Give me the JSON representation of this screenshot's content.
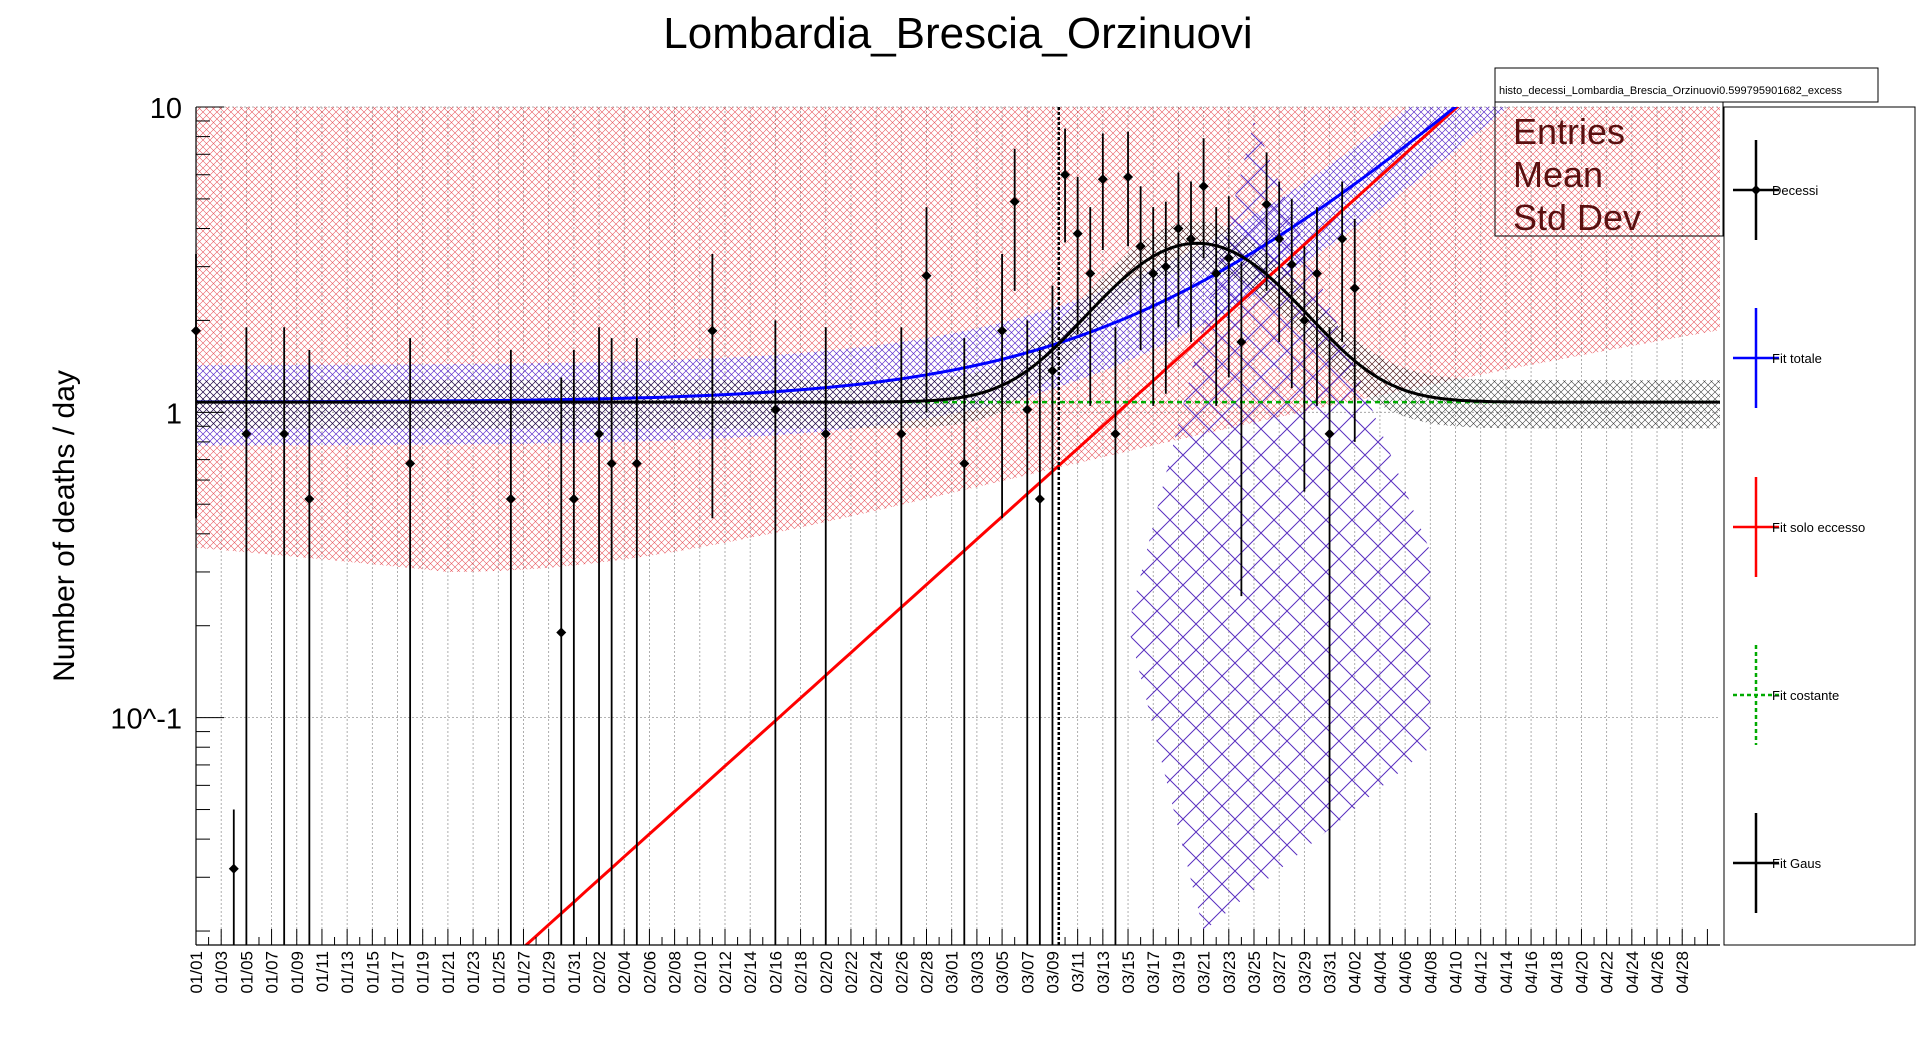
{
  "chart_data": {
    "type": "scatter",
    "title": "Lombardia_Brescia_Orzinuovi",
    "ylabel": "Number of deaths / day",
    "xlabel": "",
    "y_scale": "log",
    "ylim": [
      0.018,
      10
    ],
    "y_ticks": [
      "10",
      "1",
      "10^-1"
    ],
    "x_day_range": [
      0,
      121
    ],
    "x_tick_labels": [
      "01/01",
      "01/03",
      "01/05",
      "01/07",
      "01/09",
      "01/11",
      "01/13",
      "01/15",
      "01/17",
      "01/19",
      "01/21",
      "01/23",
      "01/25",
      "01/27",
      "01/29",
      "01/31",
      "02/02",
      "02/04",
      "02/06",
      "02/08",
      "02/10",
      "02/12",
      "02/14",
      "02/16",
      "02/18",
      "02/20",
      "02/22",
      "02/24",
      "02/26",
      "02/28",
      "03/01",
      "03/03",
      "03/05",
      "03/07",
      "03/09",
      "03/11",
      "03/13",
      "03/15",
      "03/17",
      "03/19",
      "03/21",
      "03/23",
      "03/25",
      "03/27",
      "03/29",
      "03/31",
      "04/02",
      "04/04",
      "04/06",
      "04/08",
      "04/10",
      "04/12",
      "04/14",
      "04/16",
      "04/18",
      "04/20",
      "04/22",
      "04/24",
      "04/26",
      "04/28"
    ],
    "grid": true,
    "legend_position": "right",
    "stats_box": {
      "name": "histo_decessi_Lombardia_Brescia_Orzinuovi0.599795901682_excess",
      "labels": [
        "Entries",
        "Mean",
        "Std Dev"
      ]
    },
    "vertical_marker_day": 68.5,
    "series": [
      {
        "name": "Decessi",
        "color": "#000000",
        "points": [
          {
            "day": 0,
            "y": 1.85,
            "lo": 0.45,
            "hi": 3.3
          },
          {
            "day": 3,
            "y": 0.032,
            "lo": 0.018,
            "hi": 0.05
          },
          {
            "day": 4,
            "y": 0.85,
            "lo": 0.018,
            "hi": 1.9
          },
          {
            "day": 7,
            "y": 0.85,
            "lo": 0.018,
            "hi": 1.9
          },
          {
            "day": 9,
            "y": 0.52,
            "lo": 0.018,
            "hi": 1.6
          },
          {
            "day": 17,
            "y": 0.68,
            "lo": 0.018,
            "hi": 1.75
          },
          {
            "day": 25,
            "y": 0.52,
            "lo": 0.018,
            "hi": 1.6
          },
          {
            "day": 29,
            "y": 0.19,
            "lo": 0.018,
            "hi": 1.3
          },
          {
            "day": 30,
            "y": 0.52,
            "lo": 0.018,
            "hi": 1.6
          },
          {
            "day": 32,
            "y": 0.85,
            "lo": 0.018,
            "hi": 1.9
          },
          {
            "day": 33,
            "y": 0.68,
            "lo": 0.018,
            "hi": 1.75
          },
          {
            "day": 35,
            "y": 0.68,
            "lo": 0.018,
            "hi": 1.75
          },
          {
            "day": 41,
            "y": 1.85,
            "lo": 0.45,
            "hi": 3.3
          },
          {
            "day": 46,
            "y": 1.02,
            "lo": 0.018,
            "hi": 2.0
          },
          {
            "day": 50,
            "y": 0.85,
            "lo": 0.018,
            "hi": 1.9
          },
          {
            "day": 56,
            "y": 0.85,
            "lo": 0.018,
            "hi": 1.9
          },
          {
            "day": 58,
            "y": 2.8,
            "lo": 1.0,
            "hi": 4.7
          },
          {
            "day": 61,
            "y": 0.68,
            "lo": 0.018,
            "hi": 1.75
          },
          {
            "day": 64,
            "y": 1.85,
            "lo": 0.45,
            "hi": 3.3
          },
          {
            "day": 65,
            "y": 4.9,
            "lo": 2.5,
            "hi": 7.3
          },
          {
            "day": 66,
            "y": 1.02,
            "lo": 0.018,
            "hi": 2.0
          },
          {
            "day": 67,
            "y": 0.52,
            "lo": 0.018,
            "hi": 1.6
          },
          {
            "day": 68,
            "y": 1.37,
            "lo": 0.018,
            "hi": 2.6
          },
          {
            "day": 69,
            "y": 6.0,
            "lo": 3.6,
            "hi": 8.5
          },
          {
            "day": 70,
            "y": 3.85,
            "lo": 1.8,
            "hi": 5.9
          },
          {
            "day": 71,
            "y": 2.85,
            "lo": 1.05,
            "hi": 4.7
          },
          {
            "day": 72,
            "y": 5.8,
            "lo": 3.4,
            "hi": 8.2
          },
          {
            "day": 73,
            "y": 0.85,
            "lo": 0.018,
            "hi": 1.9
          },
          {
            "day": 74,
            "y": 5.9,
            "lo": 3.5,
            "hi": 8.3
          },
          {
            "day": 75,
            "y": 3.5,
            "lo": 1.6,
            "hi": 5.5
          },
          {
            "day": 76,
            "y": 2.85,
            "lo": 1.05,
            "hi": 4.7
          },
          {
            "day": 77,
            "y": 3.0,
            "lo": 1.15,
            "hi": 4.9
          },
          {
            "day": 78,
            "y": 4.0,
            "lo": 1.9,
            "hi": 6.1
          },
          {
            "day": 79,
            "y": 3.7,
            "lo": 1.7,
            "hi": 5.7
          },
          {
            "day": 80,
            "y": 5.5,
            "lo": 3.2,
            "hi": 7.9
          },
          {
            "day": 81,
            "y": 2.85,
            "lo": 1.05,
            "hi": 4.7
          },
          {
            "day": 82,
            "y": 3.2,
            "lo": 1.3,
            "hi": 5.1
          },
          {
            "day": 83,
            "y": 1.7,
            "lo": 0.25,
            "hi": 3.1
          },
          {
            "day": 85,
            "y": 4.8,
            "lo": 2.5,
            "hi": 7.1
          },
          {
            "day": 86,
            "y": 3.7,
            "lo": 1.7,
            "hi": 5.7
          },
          {
            "day": 87,
            "y": 3.05,
            "lo": 1.2,
            "hi": 5.0
          },
          {
            "day": 88,
            "y": 2.0,
            "lo": 0.55,
            "hi": 3.5
          },
          {
            "day": 89,
            "y": 2.85,
            "lo": 1.05,
            "hi": 4.7
          },
          {
            "day": 90,
            "y": 0.85,
            "lo": 0.018,
            "hi": 1.9
          },
          {
            "day": 91,
            "y": 3.7,
            "lo": 1.7,
            "hi": 5.7
          },
          {
            "day": 92,
            "y": 2.55,
            "lo": 0.8,
            "hi": 4.3
          }
        ]
      },
      {
        "name": "Fit totale",
        "color": "#0000ff"
      },
      {
        "name": "Fit solo eccesso",
        "color": "#ff0000"
      },
      {
        "name": "Fit costante",
        "color": "#00aa00"
      },
      {
        "name": "Fit Gaus",
        "color": "#000000"
      }
    ],
    "fit_params": {
      "constant": 1.08,
      "gaus_amp": 2.5,
      "gaus_mean": 79.5,
      "gaus_sigma": 6.5,
      "excess_rate": 0.0855,
      "excess_day0": 73.2
    }
  },
  "legend": {
    "entries": [
      {
        "label": "Decessi",
        "color": "#000000",
        "style": "marker"
      },
      {
        "label": "Fit totale",
        "color": "#0000ff",
        "style": "line"
      },
      {
        "label": "Fit solo eccesso",
        "color": "#ff0000",
        "style": "line"
      },
      {
        "label": "Fit costante",
        "color": "#00aa00",
        "style": "dashed"
      },
      {
        "label": "Fit Gaus",
        "color": "#000000",
        "style": "line"
      }
    ]
  }
}
